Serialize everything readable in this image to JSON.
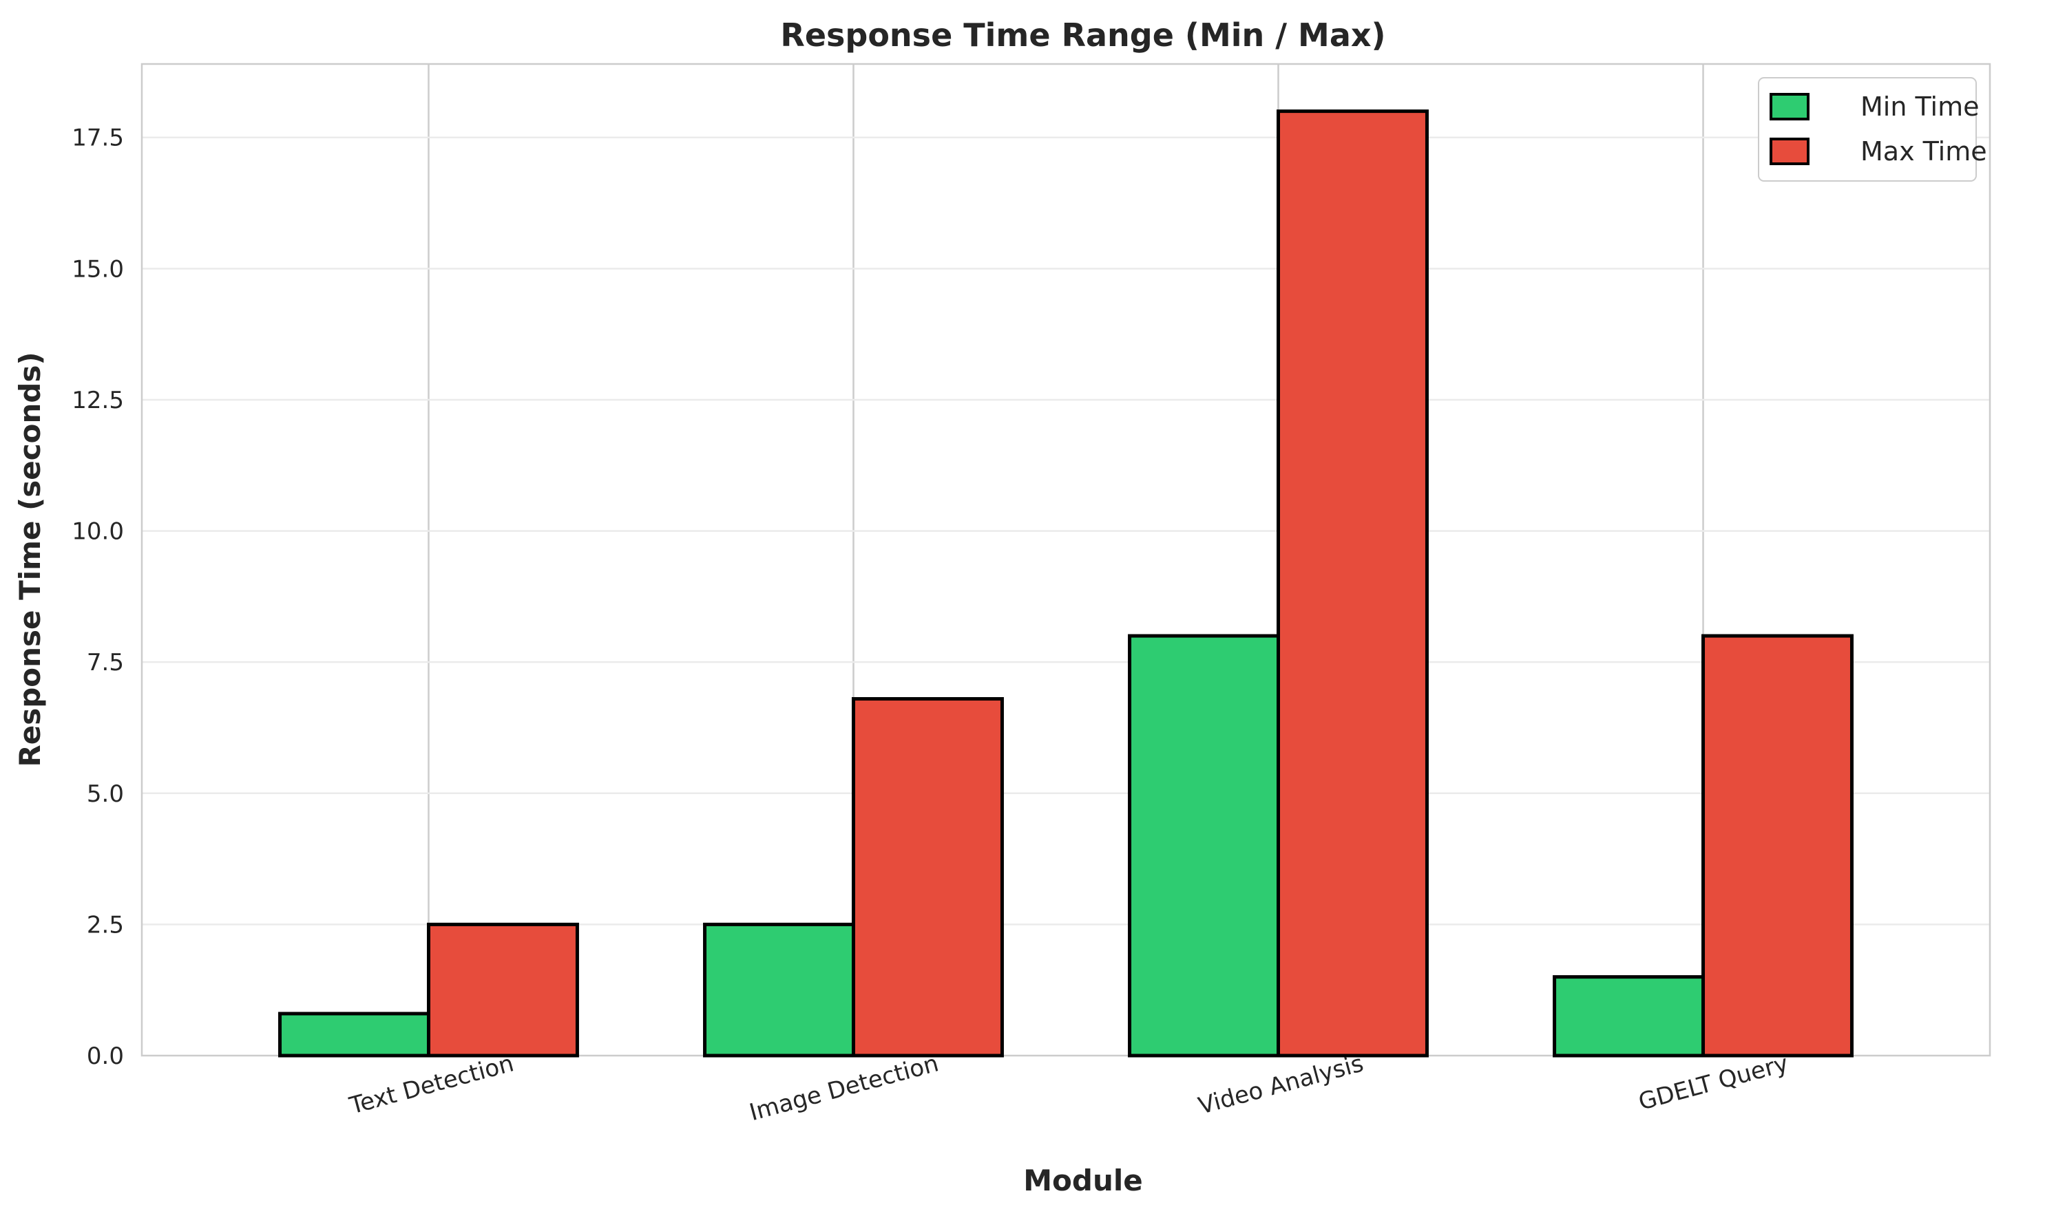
{
  "chart_data": {
    "type": "bar",
    "title": "Response Time Range (Min / Max)",
    "xlabel": "Module",
    "ylabel": "Response Time (seconds)",
    "categories": [
      "Text Detection",
      "Image Detection",
      "Video Analysis",
      "GDELT Query"
    ],
    "series": [
      {
        "name": "Min Time",
        "values": [
          0.8,
          2.5,
          8.0,
          1.5
        ],
        "color": "#2ecc71"
      },
      {
        "name": "Max Time",
        "values": [
          2.5,
          6.8,
          18.0,
          8.0
        ],
        "color": "#e74c3c"
      }
    ],
    "ylim": [
      0,
      18.9
    ],
    "yticks": [
      "0.0",
      "2.5",
      "5.0",
      "7.5",
      "10.0",
      "12.5",
      "15.0",
      "17.5"
    ],
    "grid": true,
    "legend_position": "top-right"
  }
}
